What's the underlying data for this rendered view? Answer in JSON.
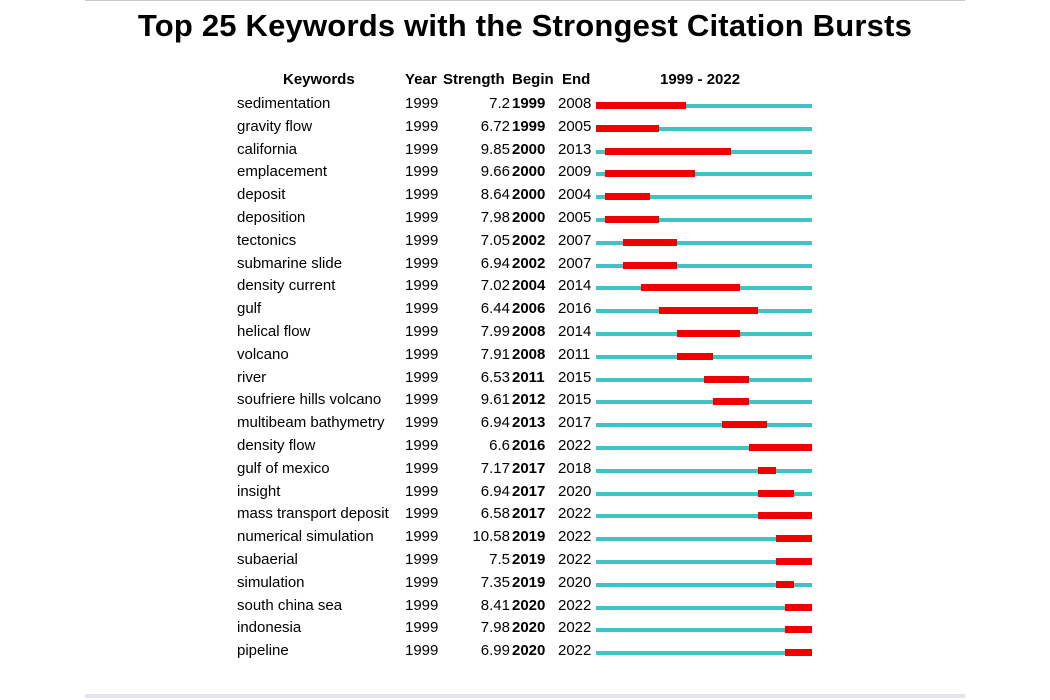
{
  "title": "Top 25 Keywords with the Strongest Citation Bursts",
  "headers": {
    "keywords": "Keywords",
    "year": "Year",
    "strength": "Strength",
    "begin": "Begin",
    "end": "End",
    "range": "1999 - 2022"
  },
  "colors": {
    "burst": "#f20000",
    "timeline": "#3fc3c3"
  },
  "chart_data": {
    "type": "table",
    "title": "Top 25 Keywords with the Strongest Citation Bursts",
    "timeline_start": 1999,
    "timeline_end": 2022,
    "rows": [
      {
        "keyword": "sedimentation",
        "year": "1999",
        "strength": "7.2",
        "begin": "1999",
        "end": "2008"
      },
      {
        "keyword": "gravity flow",
        "year": "1999",
        "strength": "6.72",
        "begin": "1999",
        "end": "2005"
      },
      {
        "keyword": "california",
        "year": "1999",
        "strength": "9.85",
        "begin": "2000",
        "end": "2013"
      },
      {
        "keyword": "emplacement",
        "year": "1999",
        "strength": "9.66",
        "begin": "2000",
        "end": "2009"
      },
      {
        "keyword": "deposit",
        "year": "1999",
        "strength": "8.64",
        "begin": "2000",
        "end": "2004"
      },
      {
        "keyword": "deposition",
        "year": "1999",
        "strength": "7.98",
        "begin": "2000",
        "end": "2005"
      },
      {
        "keyword": "tectonics",
        "year": "1999",
        "strength": "7.05",
        "begin": "2002",
        "end": "2007"
      },
      {
        "keyword": "submarine slide",
        "year": "1999",
        "strength": "6.94",
        "begin": "2002",
        "end": "2007"
      },
      {
        "keyword": "density current",
        "year": "1999",
        "strength": "7.02",
        "begin": "2004",
        "end": "2014"
      },
      {
        "keyword": "gulf",
        "year": "1999",
        "strength": "6.44",
        "begin": "2006",
        "end": "2016"
      },
      {
        "keyword": "helical flow",
        "year": "1999",
        "strength": "7.99",
        "begin": "2008",
        "end": "2014"
      },
      {
        "keyword": "volcano",
        "year": "1999",
        "strength": "7.91",
        "begin": "2008",
        "end": "2011"
      },
      {
        "keyword": "river",
        "year": "1999",
        "strength": "6.53",
        "begin": "2011",
        "end": "2015"
      },
      {
        "keyword": "soufriere hills volcano",
        "year": "1999",
        "strength": "9.61",
        "begin": "2012",
        "end": "2015"
      },
      {
        "keyword": "multibeam bathymetry",
        "year": "1999",
        "strength": "6.94",
        "begin": "2013",
        "end": "2017"
      },
      {
        "keyword": "density flow",
        "year": "1999",
        "strength": "6.6",
        "begin": "2016",
        "end": "2022"
      },
      {
        "keyword": "gulf of mexico",
        "year": "1999",
        "strength": "7.17",
        "begin": "2017",
        "end": "2018"
      },
      {
        "keyword": "insight",
        "year": "1999",
        "strength": "6.94",
        "begin": "2017",
        "end": "2020"
      },
      {
        "keyword": "mass transport deposit",
        "year": "1999",
        "strength": "6.58",
        "begin": "2017",
        "end": "2022"
      },
      {
        "keyword": "numerical simulation",
        "year": "1999",
        "strength": "10.58",
        "begin": "2019",
        "end": "2022"
      },
      {
        "keyword": "subaerial",
        "year": "1999",
        "strength": "7.5",
        "begin": "2019",
        "end": "2022"
      },
      {
        "keyword": "simulation",
        "year": "1999",
        "strength": "7.35",
        "begin": "2019",
        "end": "2020"
      },
      {
        "keyword": "south china sea",
        "year": "1999",
        "strength": "8.41",
        "begin": "2020",
        "end": "2022"
      },
      {
        "keyword": "indonesia",
        "year": "1999",
        "strength": "7.98",
        "begin": "2020",
        "end": "2022"
      },
      {
        "keyword": "pipeline",
        "year": "1999",
        "strength": "6.99",
        "begin": "2020",
        "end": "2022"
      }
    ]
  }
}
